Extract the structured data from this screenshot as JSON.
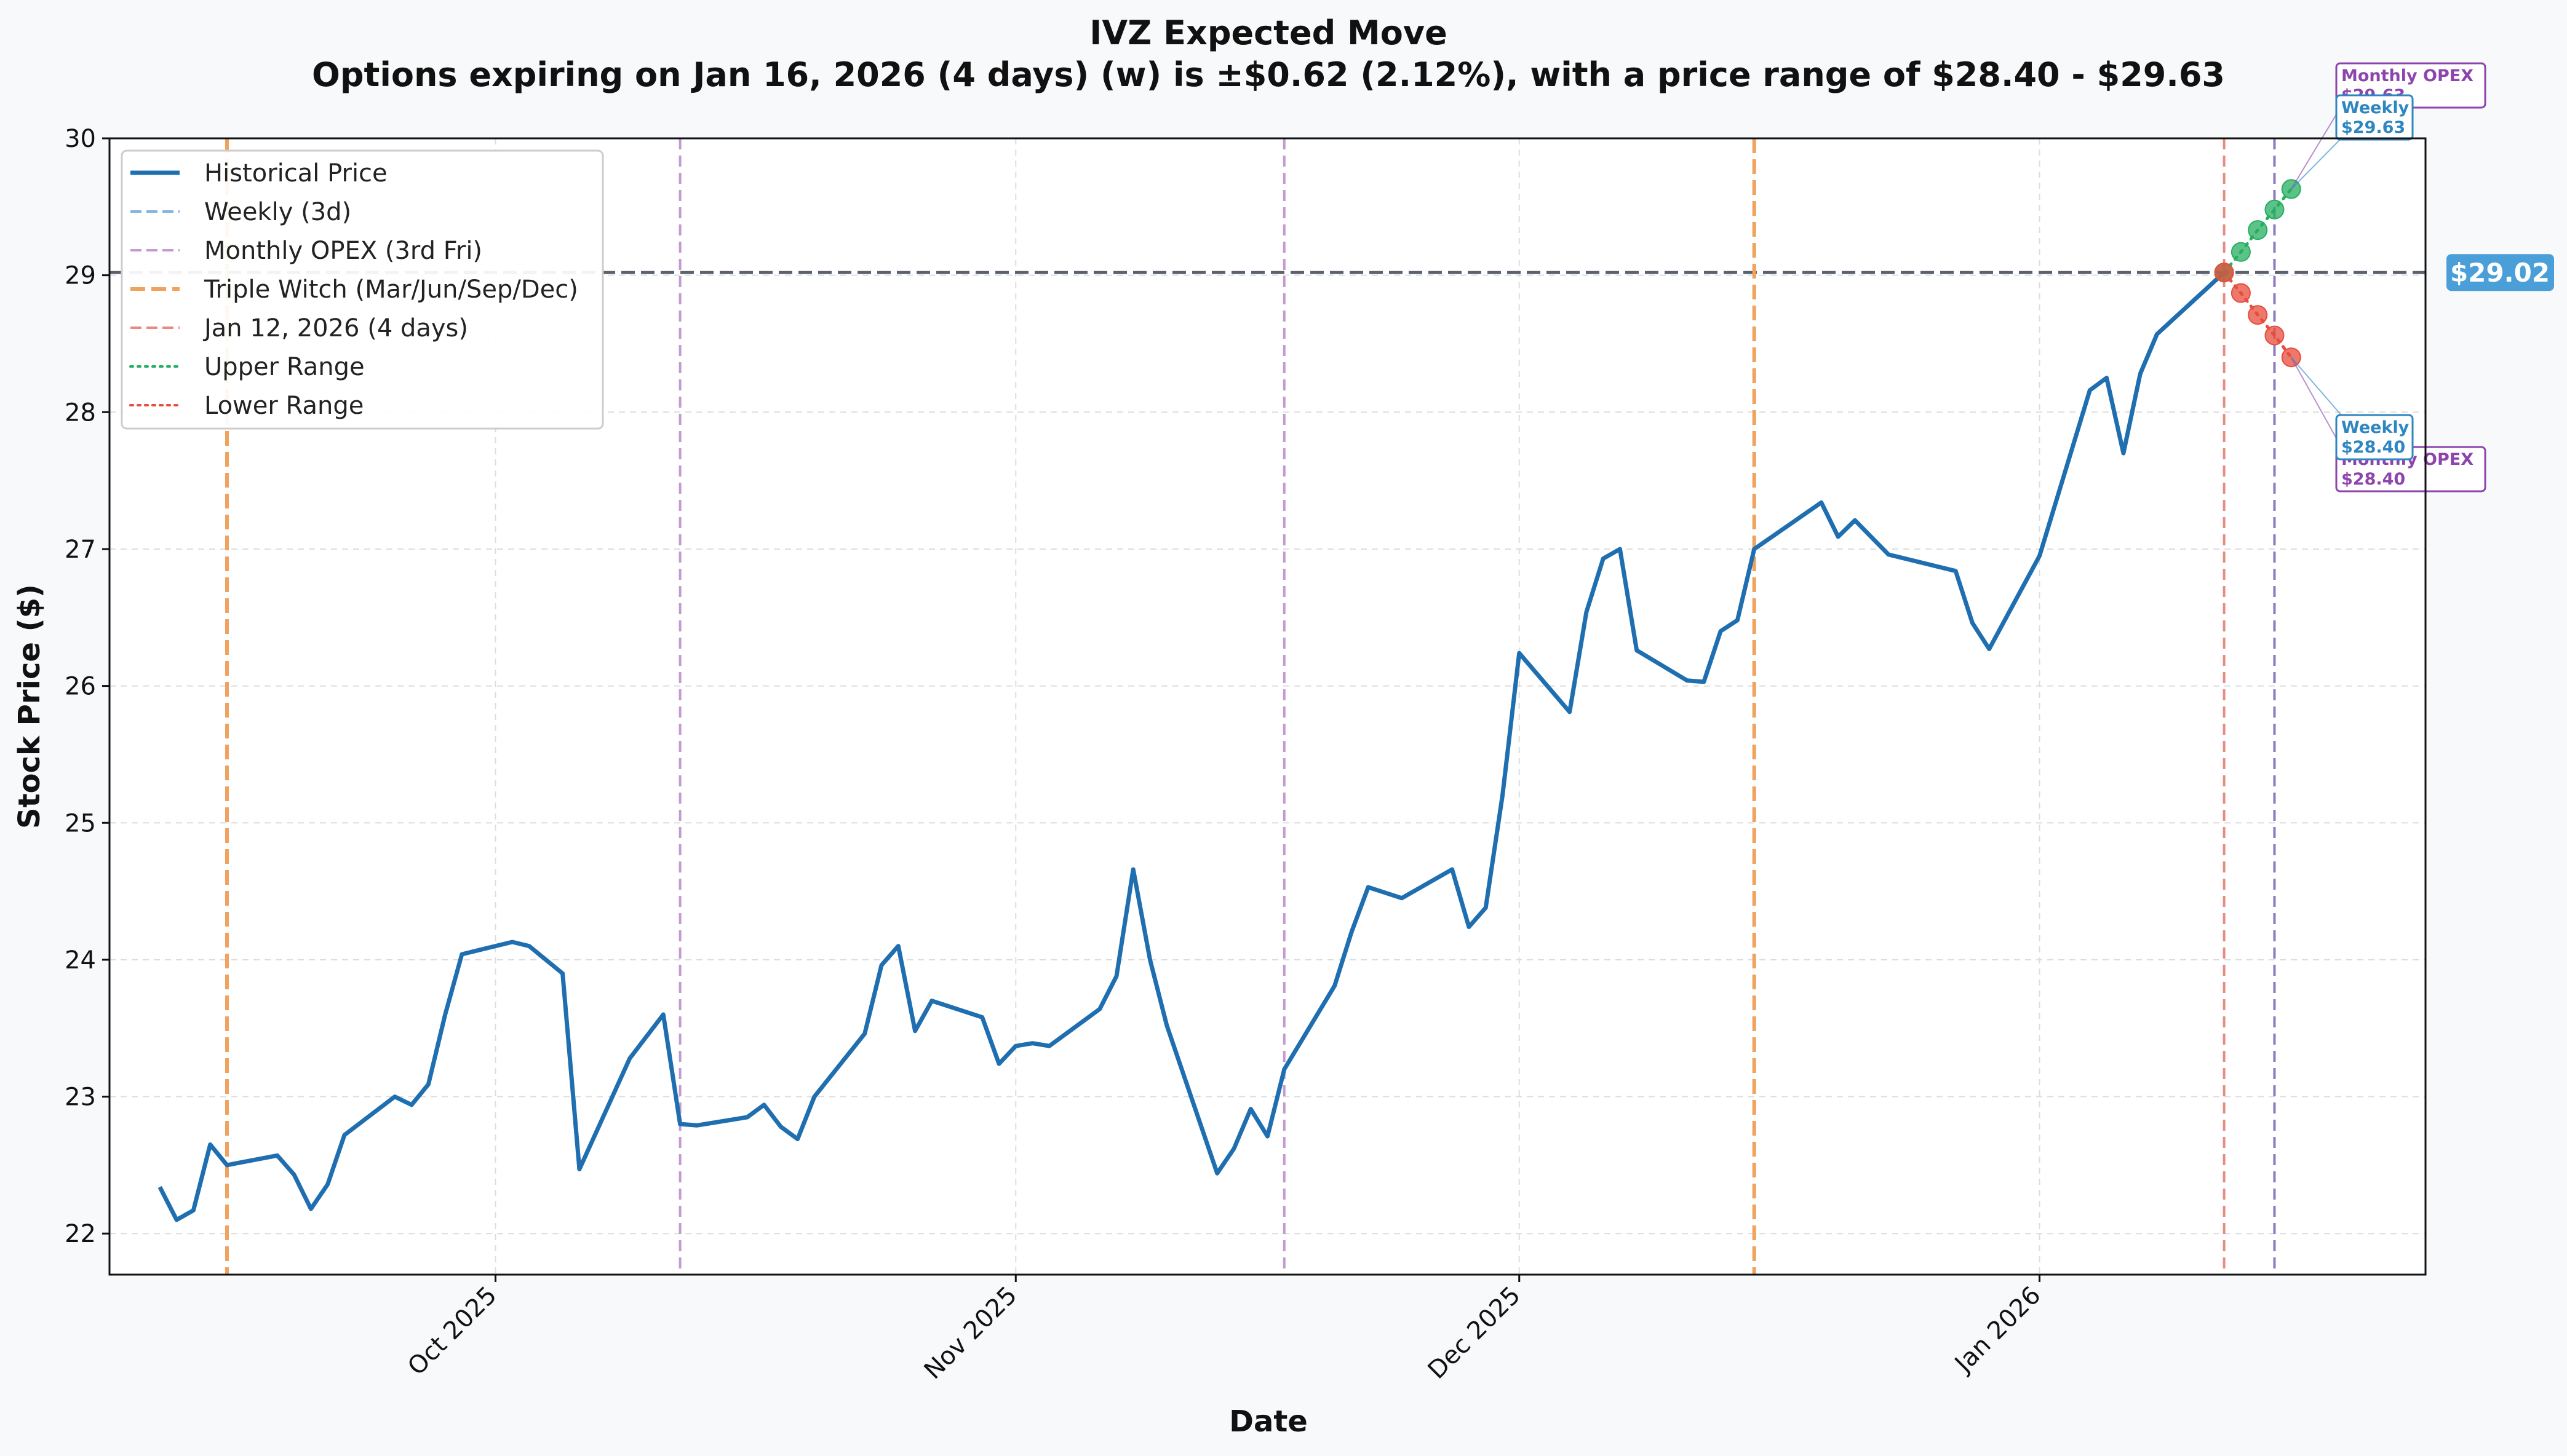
{
  "chart_data": {
    "type": "line",
    "title": "IVZ Expected Move",
    "subtitle": "Options expiring on Jan 16, 2026 (4 days) (w) is ±$0.62 (2.12%), with a price range of $28.40 - $29.63",
    "xlabel": "Date",
    "ylabel": "Stock Price ($)",
    "ylim": [
      21.7,
      30
    ],
    "xlim": [
      "2025-09-08",
      "2026-01-24"
    ],
    "y_ticks": [
      22,
      23,
      24,
      25,
      26,
      27,
      28,
      29,
      30
    ],
    "x_ticks": [
      {
        "date": "2025-10-01",
        "label": "Oct 2025"
      },
      {
        "date": "2025-11-01",
        "label": "Nov 2025"
      },
      {
        "date": "2025-12-01",
        "label": "Dec 2025"
      },
      {
        "date": "2026-01-01",
        "label": "Jan 2026"
      }
    ],
    "grid": true,
    "legend_position": "top-left",
    "legend": [
      {
        "label": "Historical Price",
        "color": "#1f6fb0",
        "style": "solid"
      },
      {
        "label": "Weekly (3d)",
        "color": "#7fb2e0",
        "style": "dashed"
      },
      {
        "label": "Monthly OPEX (3rd Fri)",
        "color": "#c39bd3",
        "style": "dashed"
      },
      {
        "label": "Triple Witch (Mar/Jun/Sep/Dec)",
        "color": "#f0a35e",
        "style": "dashed-thick"
      },
      {
        "label": "Jan 12, 2026 (4 days)",
        "color": "#e98b80",
        "style": "dashed"
      },
      {
        "label": "Upper Range",
        "color": "#27ae60",
        "style": "dotted"
      },
      {
        "label": "Lower Range",
        "color": "#e74c3c",
        "style": "dotted"
      }
    ],
    "series": [
      {
        "name": "Historical Price",
        "color": "#1f6fb0",
        "points": [
          [
            "2025-09-11",
            22.34
          ],
          [
            "2025-09-12",
            22.1
          ],
          [
            "2025-09-13",
            22.17
          ],
          [
            "2025-09-14",
            22.65
          ],
          [
            "2025-09-15",
            22.5
          ],
          [
            "2025-09-18",
            22.57
          ],
          [
            "2025-09-19",
            22.43
          ],
          [
            "2025-09-20",
            22.18
          ],
          [
            "2025-09-21",
            22.36
          ],
          [
            "2025-09-22",
            22.72
          ],
          [
            "2025-09-25",
            23.0
          ],
          [
            "2025-09-26",
            22.94
          ],
          [
            "2025-09-27",
            23.09
          ],
          [
            "2025-09-28",
            23.6
          ],
          [
            "2025-09-29",
            24.04
          ],
          [
            "2025-10-02",
            24.13
          ],
          [
            "2025-10-03",
            24.1
          ],
          [
            "2025-10-05",
            23.9
          ],
          [
            "2025-10-06",
            22.47
          ],
          [
            "2025-10-09",
            23.28
          ],
          [
            "2025-10-11",
            23.6
          ],
          [
            "2025-10-12",
            22.8
          ],
          [
            "2025-10-13",
            22.79
          ],
          [
            "2025-10-16",
            22.85
          ],
          [
            "2025-10-17",
            22.94
          ],
          [
            "2025-10-18",
            22.78
          ],
          [
            "2025-10-19",
            22.69
          ],
          [
            "2025-10-20",
            23.0
          ],
          [
            "2025-10-23",
            23.46
          ],
          [
            "2025-10-24",
            23.96
          ],
          [
            "2025-10-25",
            24.1
          ],
          [
            "2025-10-26",
            23.48
          ],
          [
            "2025-10-27",
            23.7
          ],
          [
            "2025-10-30",
            23.58
          ],
          [
            "2025-10-31",
            23.24
          ],
          [
            "2025-11-01",
            23.37
          ],
          [
            "2025-11-02",
            23.39
          ],
          [
            "2025-11-03",
            23.37
          ],
          [
            "2025-11-06",
            23.64
          ],
          [
            "2025-11-07",
            23.88
          ],
          [
            "2025-11-08",
            24.66
          ],
          [
            "2025-11-09",
            24.0
          ],
          [
            "2025-11-10",
            23.52
          ],
          [
            "2025-11-13",
            22.44
          ],
          [
            "2025-11-14",
            22.62
          ],
          [
            "2025-11-15",
            22.91
          ],
          [
            "2025-11-16",
            22.71
          ],
          [
            "2025-11-17",
            23.2
          ],
          [
            "2025-11-20",
            23.81
          ],
          [
            "2025-11-21",
            24.2
          ],
          [
            "2025-11-22",
            24.53
          ],
          [
            "2025-11-24",
            24.45
          ],
          [
            "2025-11-27",
            24.66
          ],
          [
            "2025-11-28",
            24.24
          ],
          [
            "2025-11-29",
            24.38
          ],
          [
            "2025-11-30",
            25.2
          ],
          [
            "2025-12-01",
            26.24
          ],
          [
            "2025-12-04",
            25.81
          ],
          [
            "2025-12-05",
            26.54
          ],
          [
            "2025-12-06",
            26.93
          ],
          [
            "2025-12-07",
            27.0
          ],
          [
            "2025-12-08",
            26.26
          ],
          [
            "2025-12-11",
            26.04
          ],
          [
            "2025-12-12",
            26.03
          ],
          [
            "2025-12-13",
            26.4
          ],
          [
            "2025-12-14",
            26.48
          ],
          [
            "2025-12-15",
            27.0
          ],
          [
            "2025-12-19",
            27.34
          ],
          [
            "2025-12-20",
            27.09
          ],
          [
            "2025-12-21",
            27.21
          ],
          [
            "2025-12-23",
            26.96
          ],
          [
            "2025-12-27",
            26.84
          ],
          [
            "2025-12-28",
            26.46
          ],
          [
            "2025-12-29",
            26.27
          ],
          [
            "2026-01-01",
            26.95
          ],
          [
            "2026-01-04",
            28.16
          ],
          [
            "2026-01-05",
            28.25
          ],
          [
            "2026-01-06",
            27.7
          ],
          [
            "2026-01-07",
            28.28
          ],
          [
            "2026-01-08",
            28.57
          ],
          [
            "2026-01-12",
            29.02
          ]
        ]
      },
      {
        "name": "Upper Range",
        "color": "#27ae60",
        "points": [
          [
            "2026-01-12",
            29.02
          ],
          [
            "2026-01-13",
            29.17
          ],
          [
            "2026-01-14",
            29.33
          ],
          [
            "2026-01-15",
            29.48
          ],
          [
            "2026-01-16",
            29.63
          ]
        ]
      },
      {
        "name": "Lower Range",
        "color": "#e74c3c",
        "points": [
          [
            "2026-01-12",
            29.02
          ],
          [
            "2026-01-13",
            28.87
          ],
          [
            "2026-01-14",
            28.71
          ],
          [
            "2026-01-15",
            28.56
          ],
          [
            "2026-01-16",
            28.4
          ]
        ]
      }
    ],
    "vertical_lines": [
      {
        "date": "2025-09-15",
        "kind": "Triple Witch",
        "color": "#f0a35e"
      },
      {
        "date": "2025-10-12",
        "kind": "Monthly OPEX",
        "color": "#c39bd3"
      },
      {
        "date": "2025-11-17",
        "kind": "Monthly OPEX",
        "color": "#c39bd3"
      },
      {
        "date": "2025-12-15",
        "kind": "Triple Witch",
        "color": "#f0a35e"
      },
      {
        "date": "2026-01-12",
        "kind": "Today",
        "color": "#e98b80"
      },
      {
        "date": "2026-01-15",
        "kind": "Expiry",
        "color": "#8e7cc3"
      }
    ],
    "current_price": {
      "value": 29.02,
      "label": "$29.02",
      "color": "#4a9fd8"
    },
    "annotations": [
      {
        "date": "2026-01-16",
        "value": 29.63,
        "lines": [
          "Monthly OPEX",
          "$29.63"
        ],
        "color": "#8e44ad",
        "placement": "upper-back"
      },
      {
        "date": "2026-01-16",
        "value": 29.63,
        "lines": [
          "Weekly",
          "$29.63"
        ],
        "color": "#2e86c1",
        "placement": "upper-front"
      },
      {
        "date": "2026-01-16",
        "value": 28.4,
        "lines": [
          "Monthly OPEX",
          "$28.40"
        ],
        "color": "#8e44ad",
        "placement": "lower-back"
      },
      {
        "date": "2026-01-16",
        "value": 28.4,
        "lines": [
          "Weekly",
          "$28.40"
        ],
        "color": "#2e86c1",
        "placement": "lower-front"
      }
    ]
  }
}
